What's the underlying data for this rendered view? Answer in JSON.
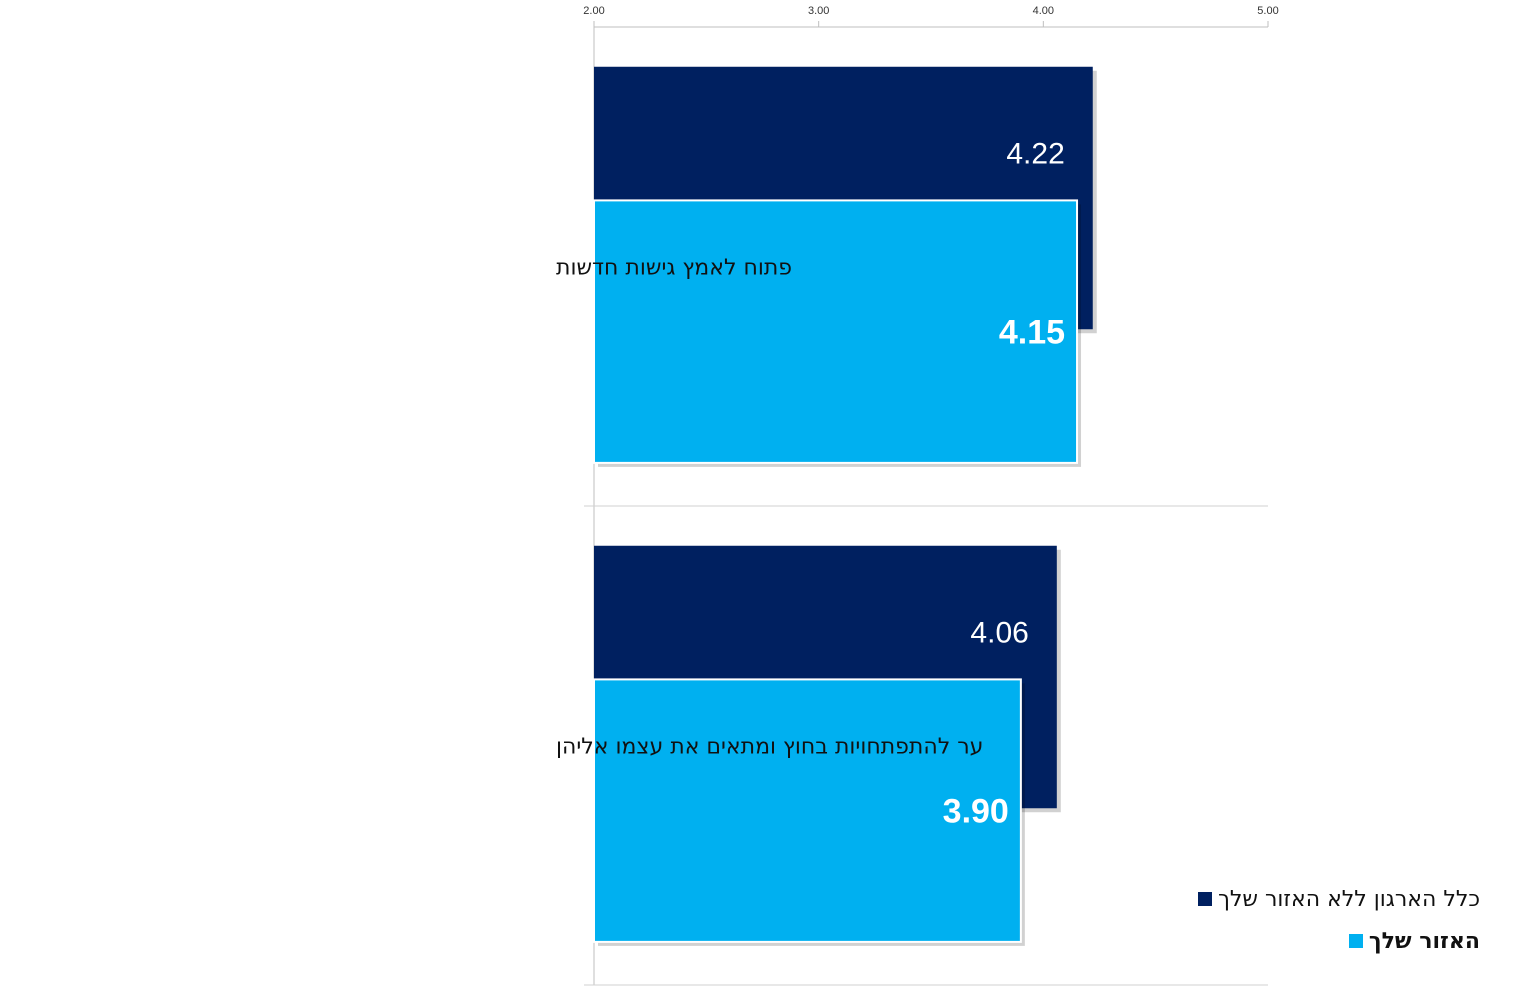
{
  "chart_data": {
    "type": "bar",
    "orientation": "horizontal",
    "categories": [
      "פתוח לאמץ גישות חדשות",
      "ער להתפתחויות בחוץ ומתאים את עצמו אליהן"
    ],
    "series": [
      {
        "name": "כלל הארגון ללא האזור שלך",
        "values": [
          4.22,
          4.06
        ],
        "color": "#002060",
        "labels": [
          "4.22",
          "4.06"
        ]
      },
      {
        "name": "האזור שלך",
        "values": [
          4.15,
          3.9
        ],
        "color": "#00B0F0",
        "labels": [
          "4.15",
          "3.90"
        ]
      }
    ],
    "xlim": [
      2.0,
      5.0
    ],
    "ticks": [
      2.0,
      3.0,
      4.0,
      5.0
    ],
    "tick_labels": [
      "2.00",
      "3.00",
      "4.00",
      "5.00"
    ],
    "axis_position": "top",
    "grid": false,
    "legend_position": "bottom-right"
  }
}
